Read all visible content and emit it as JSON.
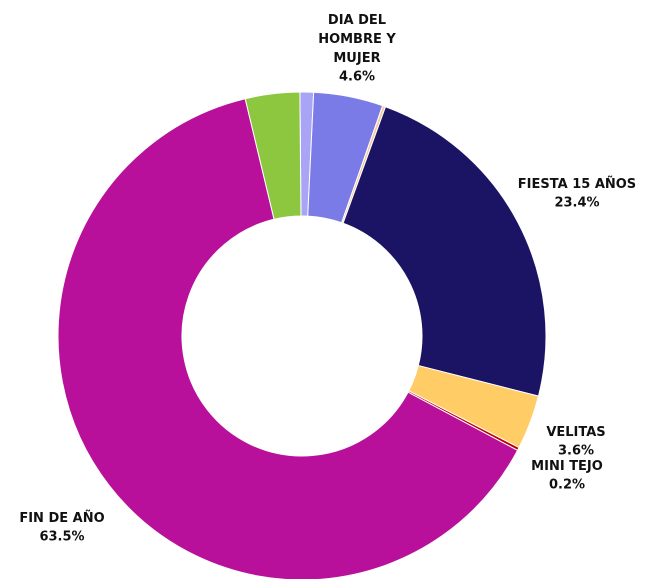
{
  "chart_data": {
    "type": "donut",
    "categories": [
      null,
      "DIA DEL HOMBRE Y MUJER",
      null,
      "FIESTA 15 AÑOS",
      "VELITAS",
      "MINI TEJO",
      "FIN DE AÑO",
      null
    ],
    "values": [
      0.9,
      4.6,
      0.2,
      23.4,
      3.6,
      0.2,
      63.5,
      3.6
    ],
    "value_labels": [
      null,
      "4.6%",
      null,
      "23.4%",
      "3.6%",
      "0.2%",
      "63.5%",
      null
    ],
    "colors": [
      "#a9a4f5",
      "#7b7be8",
      "#f5c99a",
      "#1b1464",
      "#ffcc66",
      "#c00000",
      "#b8109b",
      "#8dc63f"
    ]
  }
}
